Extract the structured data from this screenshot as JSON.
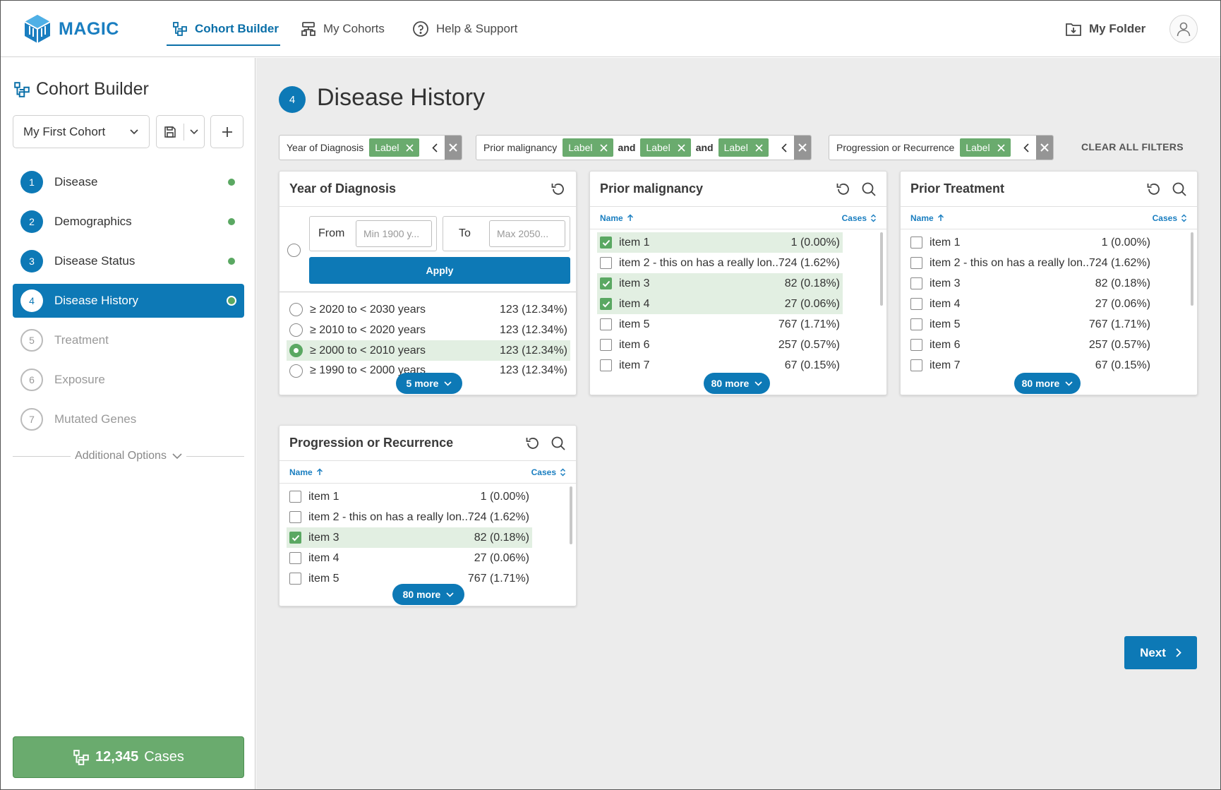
{
  "app": {
    "brand": "MAGIC",
    "nav": [
      {
        "label": "Cohort Builder"
      },
      {
        "label": "My Cohorts"
      },
      {
        "label": "Help & Support"
      }
    ],
    "my_folder": "My Folder"
  },
  "sidebar": {
    "title": "Cohort Builder",
    "cohort_select": "My First Cohort",
    "steps": [
      {
        "num": "1",
        "label": "Disease",
        "state": "done"
      },
      {
        "num": "2",
        "label": "Demographics",
        "state": "done"
      },
      {
        "num": "3",
        "label": "Disease Status",
        "state": "done"
      },
      {
        "num": "4",
        "label": "Disease History",
        "state": "active"
      },
      {
        "num": "5",
        "label": "Treatment",
        "state": "todo"
      },
      {
        "num": "6",
        "label": "Exposure",
        "state": "todo"
      },
      {
        "num": "7",
        "label": "Mutated Genes",
        "state": "todo"
      }
    ],
    "additional_options": "Additional Options",
    "cases_count": "12,345",
    "cases_label": "Cases"
  },
  "page": {
    "step_num": "4",
    "title": "Disease History"
  },
  "filters": {
    "groups": [
      {
        "name": "Year of Diagnosis",
        "chips": [
          "Label"
        ]
      },
      {
        "name": "Prior malignancy",
        "chips": [
          "Label",
          "Label",
          "Label"
        ],
        "joiner": "and"
      },
      {
        "name": "Progression or Recurrence",
        "chips": [
          "Label"
        ]
      }
    ],
    "clear_all": "CLEAR ALL FILTERS"
  },
  "cards": {
    "year": {
      "title": "Year of Diagnosis",
      "from_label": "From",
      "from_placeholder": "Min 1900 y...",
      "to_label": "To",
      "to_placeholder": "Max 2050...",
      "apply": "Apply",
      "rows": [
        {
          "name": "≥ 2020 to < 2030 years",
          "count": "123 (12.34%)",
          "selected": false
        },
        {
          "name": "≥ 2010 to < 2020 years",
          "count": "123 (12.34%)",
          "selected": false
        },
        {
          "name": "≥ 2000 to < 2010 years",
          "count": "123 (12.34%)",
          "selected": true
        },
        {
          "name": "≥ 1990 to < 2000 years",
          "count": "123 (12.34%)",
          "selected": false
        }
      ],
      "more": "5 more"
    },
    "prior": {
      "title": "Prior malignancy",
      "col_name": "Name",
      "col_cases": "Cases",
      "rows": [
        {
          "name": "item 1",
          "count": "1 (0.00%)",
          "selected": true
        },
        {
          "name": "item 2 - this on has a really lon...",
          "count": "724 (1.62%)",
          "selected": false
        },
        {
          "name": "item 3",
          "count": "82 (0.18%)",
          "selected": true
        },
        {
          "name": "item 4",
          "count": "27 (0.06%)",
          "selected": true
        },
        {
          "name": "item 5",
          "count": "767 (1.71%)",
          "selected": false
        },
        {
          "name": "item 6",
          "count": "257 (0.57%)",
          "selected": false
        },
        {
          "name": "item 7",
          "count": "67 (0.15%)",
          "selected": false
        }
      ],
      "more": "80 more"
    },
    "treatment": {
      "title": "Prior Treatment",
      "col_name": "Name",
      "col_cases": "Cases",
      "rows": [
        {
          "name": "item 1",
          "count": "1 (0.00%)",
          "selected": false
        },
        {
          "name": "item 2 - this on has a really lon...",
          "count": "724 (1.62%)",
          "selected": false
        },
        {
          "name": "item 3",
          "count": "82 (0.18%)",
          "selected": false
        },
        {
          "name": "item 4",
          "count": "27 (0.06%)",
          "selected": false
        },
        {
          "name": "item 5",
          "count": "767 (1.71%)",
          "selected": false
        },
        {
          "name": "item 6",
          "count": "257 (0.57%)",
          "selected": false
        },
        {
          "name": "item 7",
          "count": "67 (0.15%)",
          "selected": false
        }
      ],
      "more": "80 more"
    },
    "progression": {
      "title": "Progression or Recurrence",
      "col_name": "Name",
      "col_cases": "Cases",
      "rows": [
        {
          "name": "item 1",
          "count": "1 (0.00%)",
          "selected": false
        },
        {
          "name": "item 2 - this on has a really lon...",
          "count": "724 (1.62%)",
          "selected": false
        },
        {
          "name": "item 3",
          "count": "82 (0.18%)",
          "selected": true
        },
        {
          "name": "item 4",
          "count": "27 (0.06%)",
          "selected": false
        },
        {
          "name": "item 5",
          "count": "767 (1.71%)",
          "selected": false
        }
      ],
      "more": "80 more"
    }
  },
  "next_label": "Next",
  "colors": {
    "primary": "#0d79b6",
    "success": "#5aa862",
    "selected_row": "#e2efe2"
  }
}
